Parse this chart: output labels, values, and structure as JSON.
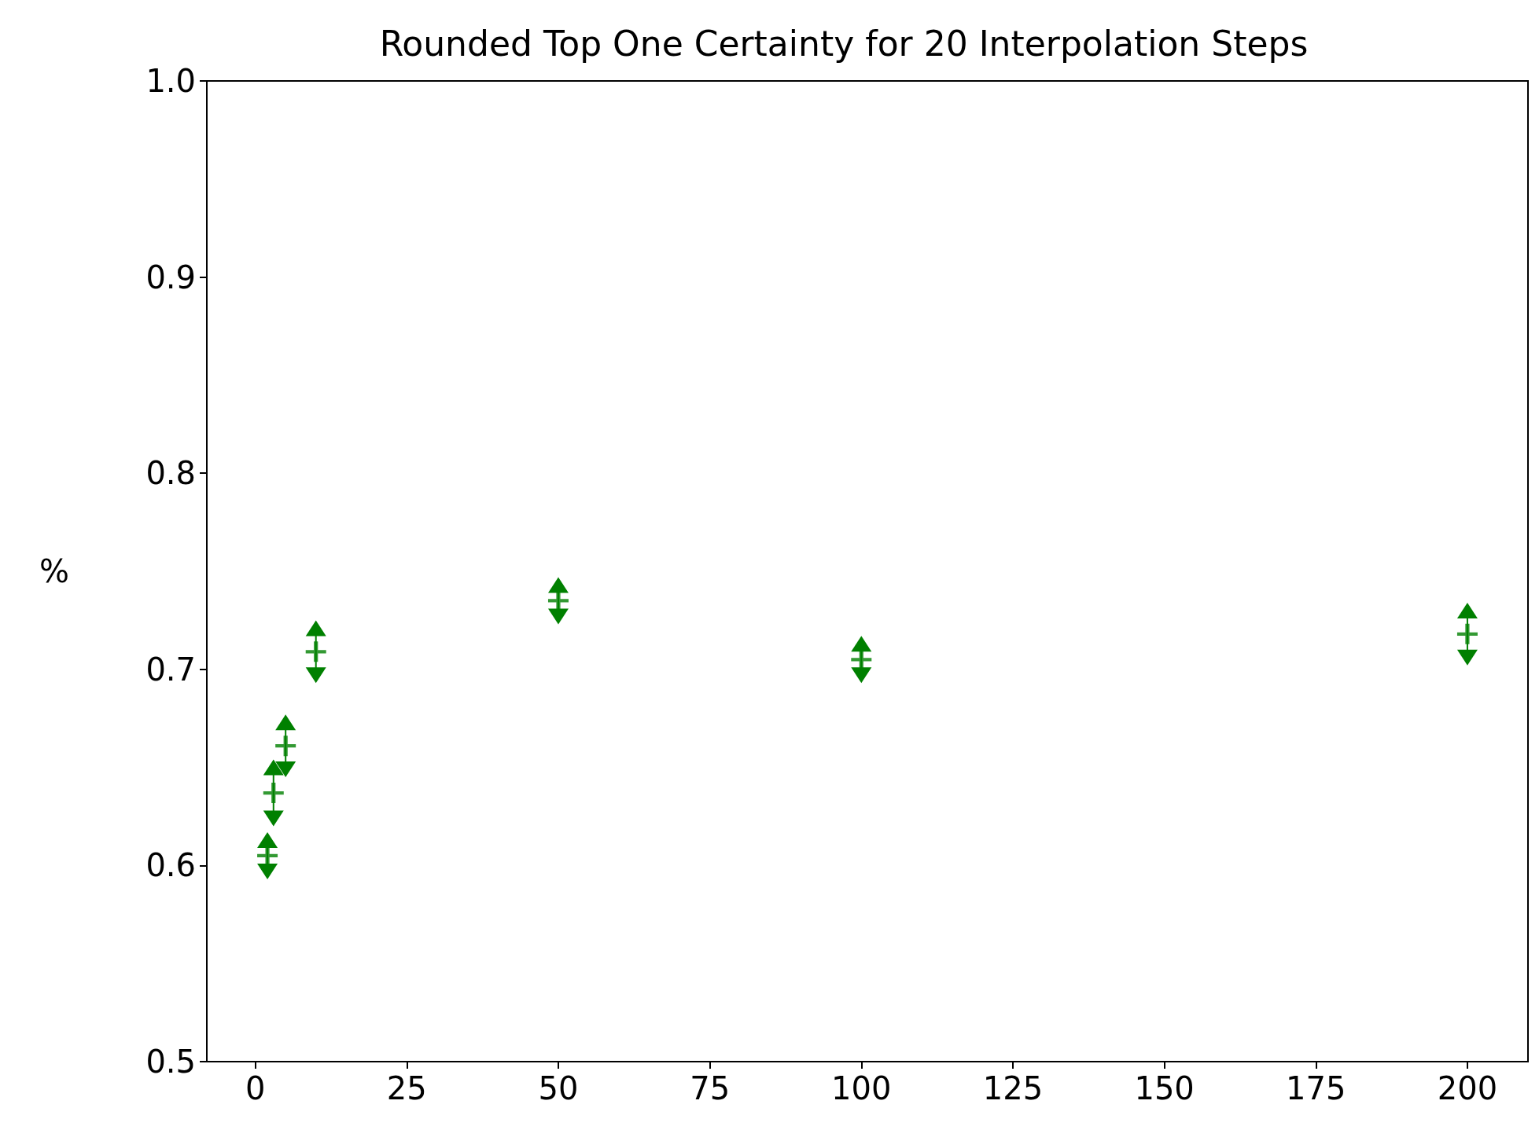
{
  "chart_data": {
    "type": "scatter",
    "title": "Rounded Top One Certainty for 20 Interpolation Steps",
    "ylabel": "%",
    "x": [
      2,
      3,
      5,
      10,
      50,
      100,
      200
    ],
    "values": [
      0.605,
      0.637,
      0.661,
      0.709,
      0.735,
      0.705,
      0.718
    ],
    "errors": [
      0.008,
      0.013,
      0.012,
      0.012,
      0.008,
      0.008,
      0.012
    ],
    "color": "#008000",
    "xlim": [
      -8,
      210
    ],
    "xticks": [
      0,
      25,
      50,
      75,
      100,
      125,
      150,
      175,
      200
    ],
    "ylim": [
      0.5,
      1.0
    ],
    "yticks": [
      {
        "value": 0.5,
        "label": "0.5"
      },
      {
        "value": 0.6,
        "label": "0.6"
      },
      {
        "value": 0.7,
        "label": "0.7"
      },
      {
        "value": 0.8,
        "label": "0.8"
      },
      {
        "value": 0.9,
        "label": "0.9"
      },
      {
        "value": 1.0,
        "label": "1.0"
      }
    ],
    "marker": "cross",
    "grid": false
  }
}
